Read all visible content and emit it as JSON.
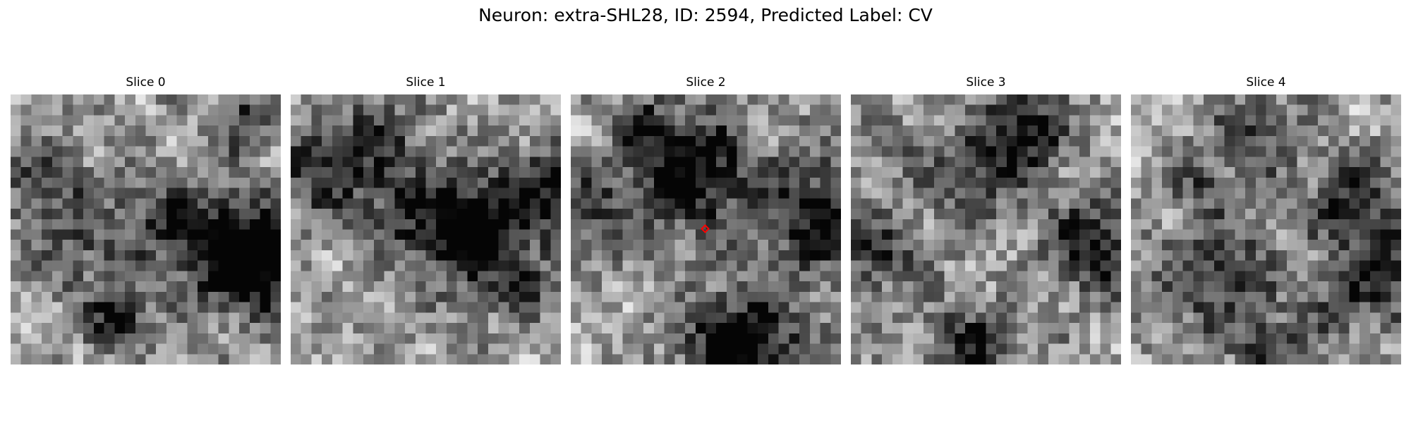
{
  "figure": {
    "title": "Neuron: extra-SHL28, ID: 2594, Predicted Label: CV"
  },
  "slices": [
    {
      "label": "Slice 0",
      "texture": "blotchy-dark-bottom-right",
      "seed": 11
    },
    {
      "label": "Slice 1",
      "texture": "dark-ring-center-right",
      "seed": 23
    },
    {
      "label": "Slice 2",
      "texture": "dark-blobs-top-center-and-bottom",
      "seed": 37,
      "marker": {
        "color": "#ff0000",
        "shape": "diamond"
      }
    },
    {
      "label": "Slice 3",
      "texture": "dark-blobs-top-and-right",
      "seed": 41
    },
    {
      "label": "Slice 4",
      "texture": "blotchy-dark-right",
      "seed": 53
    }
  ],
  "colormap": "gray"
}
